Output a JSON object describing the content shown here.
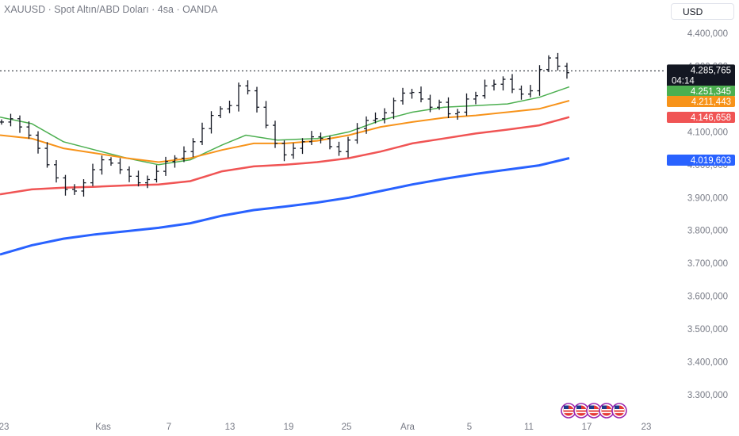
{
  "header": {
    "title": "XAUUSD · Spot Altın/ABD Doları · 4sa · OANDA",
    "currency": "USD"
  },
  "colors": {
    "ma_green": "#4caf50",
    "ma_orange": "#f7931a",
    "ma_red": "#f05454",
    "ma_blue": "#2962ff",
    "candle": "#131722",
    "last_price_bg": "#131722",
    "axis_text": "#787b86"
  },
  "chart_data": {
    "type": "line",
    "chart_style": "ohlc-bars",
    "title": "XAUUSD · Spot Altın/ABD Doları · 4sa · OANDA",
    "ylim": [
      3250000,
      4450000
    ],
    "y_ticks": [
      "4.400,000",
      "4.300,000",
      "4.200,000",
      "4.100,000",
      "4.000,000",
      "3.900,000",
      "3.800,000",
      "3.700,000",
      "3.600,000",
      "3.500,000",
      "3.400,000",
      "3.300,000"
    ],
    "x_ticks": [
      "23",
      "Kas",
      "7",
      "13",
      "19",
      "25",
      "Ara",
      "5",
      "11",
      "17",
      "23"
    ],
    "last_price": {
      "value": "4.285,765",
      "countdown": "04:14"
    },
    "series_tags": [
      {
        "value": "4.251,345",
        "color": "#4caf50"
      },
      {
        "value": "4.211,443",
        "color": "#f7931a"
      },
      {
        "value": "4.146,658",
        "color": "#f05454"
      },
      {
        "value": "4.019,603",
        "color": "#2962ff"
      }
    ],
    "price_series": [
      4130,
      4140,
      4115,
      4090,
      4050,
      4000,
      3960,
      3925,
      3920,
      3945,
      3985,
      4015,
      4005,
      3985,
      3965,
      3945,
      3955,
      3980,
      4010,
      4020,
      4040,
      4070,
      4110,
      4150,
      4170,
      4180,
      4240,
      4225,
      4175,
      4120,
      4065,
      4030,
      4050,
      4070,
      4085,
      4080,
      4055,
      4040,
      4075,
      4110,
      4135,
      4140,
      4158,
      4195,
      4218,
      4220,
      4200,
      4175,
      4190,
      4155,
      4160,
      4200,
      4210,
      4240,
      4245,
      4260,
      4230,
      4215,
      4225,
      4290,
      4325,
      4300,
      4280
    ],
    "ma_series": [
      {
        "color": "#4caf50",
        "points": [
          [
            0,
            4145
          ],
          [
            40,
            4125
          ],
          [
            80,
            4070
          ],
          [
            120,
            4045
          ],
          [
            160,
            4020
          ],
          [
            200,
            4000
          ],
          [
            240,
            4015
          ],
          [
            280,
            4060
          ],
          [
            310,
            4090
          ],
          [
            350,
            4075
          ],
          [
            400,
            4080
          ],
          [
            440,
            4100
          ],
          [
            480,
            4135
          ],
          [
            520,
            4160
          ],
          [
            560,
            4175
          ],
          [
            600,
            4180
          ],
          [
            640,
            4185
          ],
          [
            680,
            4205
          ],
          [
            718,
            4237
          ]
        ]
      },
      {
        "color": "#f7931a",
        "points": [
          [
            0,
            4090
          ],
          [
            40,
            4080
          ],
          [
            80,
            4050
          ],
          [
            120,
            4035
          ],
          [
            160,
            4020
          ],
          [
            200,
            4008
          ],
          [
            240,
            4020
          ],
          [
            280,
            4045
          ],
          [
            320,
            4065
          ],
          [
            360,
            4065
          ],
          [
            400,
            4073
          ],
          [
            440,
            4090
          ],
          [
            480,
            4115
          ],
          [
            520,
            4130
          ],
          [
            560,
            4143
          ],
          [
            600,
            4150
          ],
          [
            640,
            4160
          ],
          [
            680,
            4170
          ],
          [
            718,
            4195
          ]
        ]
      },
      {
        "color": "#f05454",
        "points": [
          [
            0,
            3910
          ],
          [
            40,
            3925
          ],
          [
            80,
            3930
          ],
          [
            120,
            3933
          ],
          [
            160,
            3937
          ],
          [
            200,
            3940
          ],
          [
            240,
            3950
          ],
          [
            280,
            3980
          ],
          [
            320,
            3995
          ],
          [
            360,
            4000
          ],
          [
            400,
            4008
          ],
          [
            440,
            4020
          ],
          [
            480,
            4040
          ],
          [
            520,
            4065
          ],
          [
            560,
            4080
          ],
          [
            600,
            4095
          ],
          [
            640,
            4107
          ],
          [
            680,
            4120
          ],
          [
            718,
            4145
          ]
        ]
      },
      {
        "color": "#2962ff",
        "points": [
          [
            0,
            3727
          ],
          [
            40,
            3755
          ],
          [
            80,
            3775
          ],
          [
            120,
            3788
          ],
          [
            160,
            3798
          ],
          [
            200,
            3808
          ],
          [
            240,
            3822
          ],
          [
            280,
            3845
          ],
          [
            320,
            3862
          ],
          [
            360,
            3873
          ],
          [
            400,
            3885
          ],
          [
            440,
            3900
          ],
          [
            480,
            3920
          ],
          [
            520,
            3940
          ],
          [
            560,
            3957
          ],
          [
            600,
            3972
          ],
          [
            640,
            3985
          ],
          [
            680,
            3998
          ],
          [
            718,
            4020
          ]
        ]
      }
    ],
    "grid": false,
    "legend": "none"
  }
}
